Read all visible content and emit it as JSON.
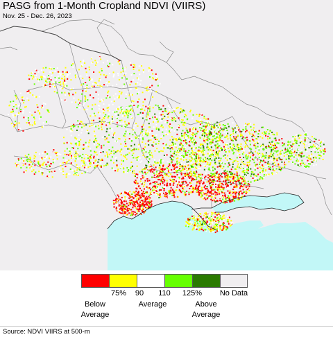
{
  "title": "PASG from 1-Month Cropland NDVI (VIIRS)",
  "subtitle": "Nov. 25 - Dec. 26, 2023",
  "colors": {
    "sea": "#c2f7f7",
    "land": "#f0eef0",
    "border": "#8c8c8c",
    "coast": "#222222"
  },
  "legend": {
    "swatch_colors": [
      "#ff0000",
      "#ffff00",
      "#ffffff",
      "#66ff00",
      "#2a7a00",
      "#f0eef0"
    ],
    "ticks": [
      "75%",
      "90",
      "110",
      "125%",
      "No Data"
    ],
    "categories": [
      {
        "line1": "Below",
        "line2": "Average"
      },
      {
        "line1": "Average",
        "line2": ""
      },
      {
        "line1": "Above",
        "line2": "Average"
      }
    ]
  },
  "source": "Source: NDVI VIIRS at 500-m"
}
